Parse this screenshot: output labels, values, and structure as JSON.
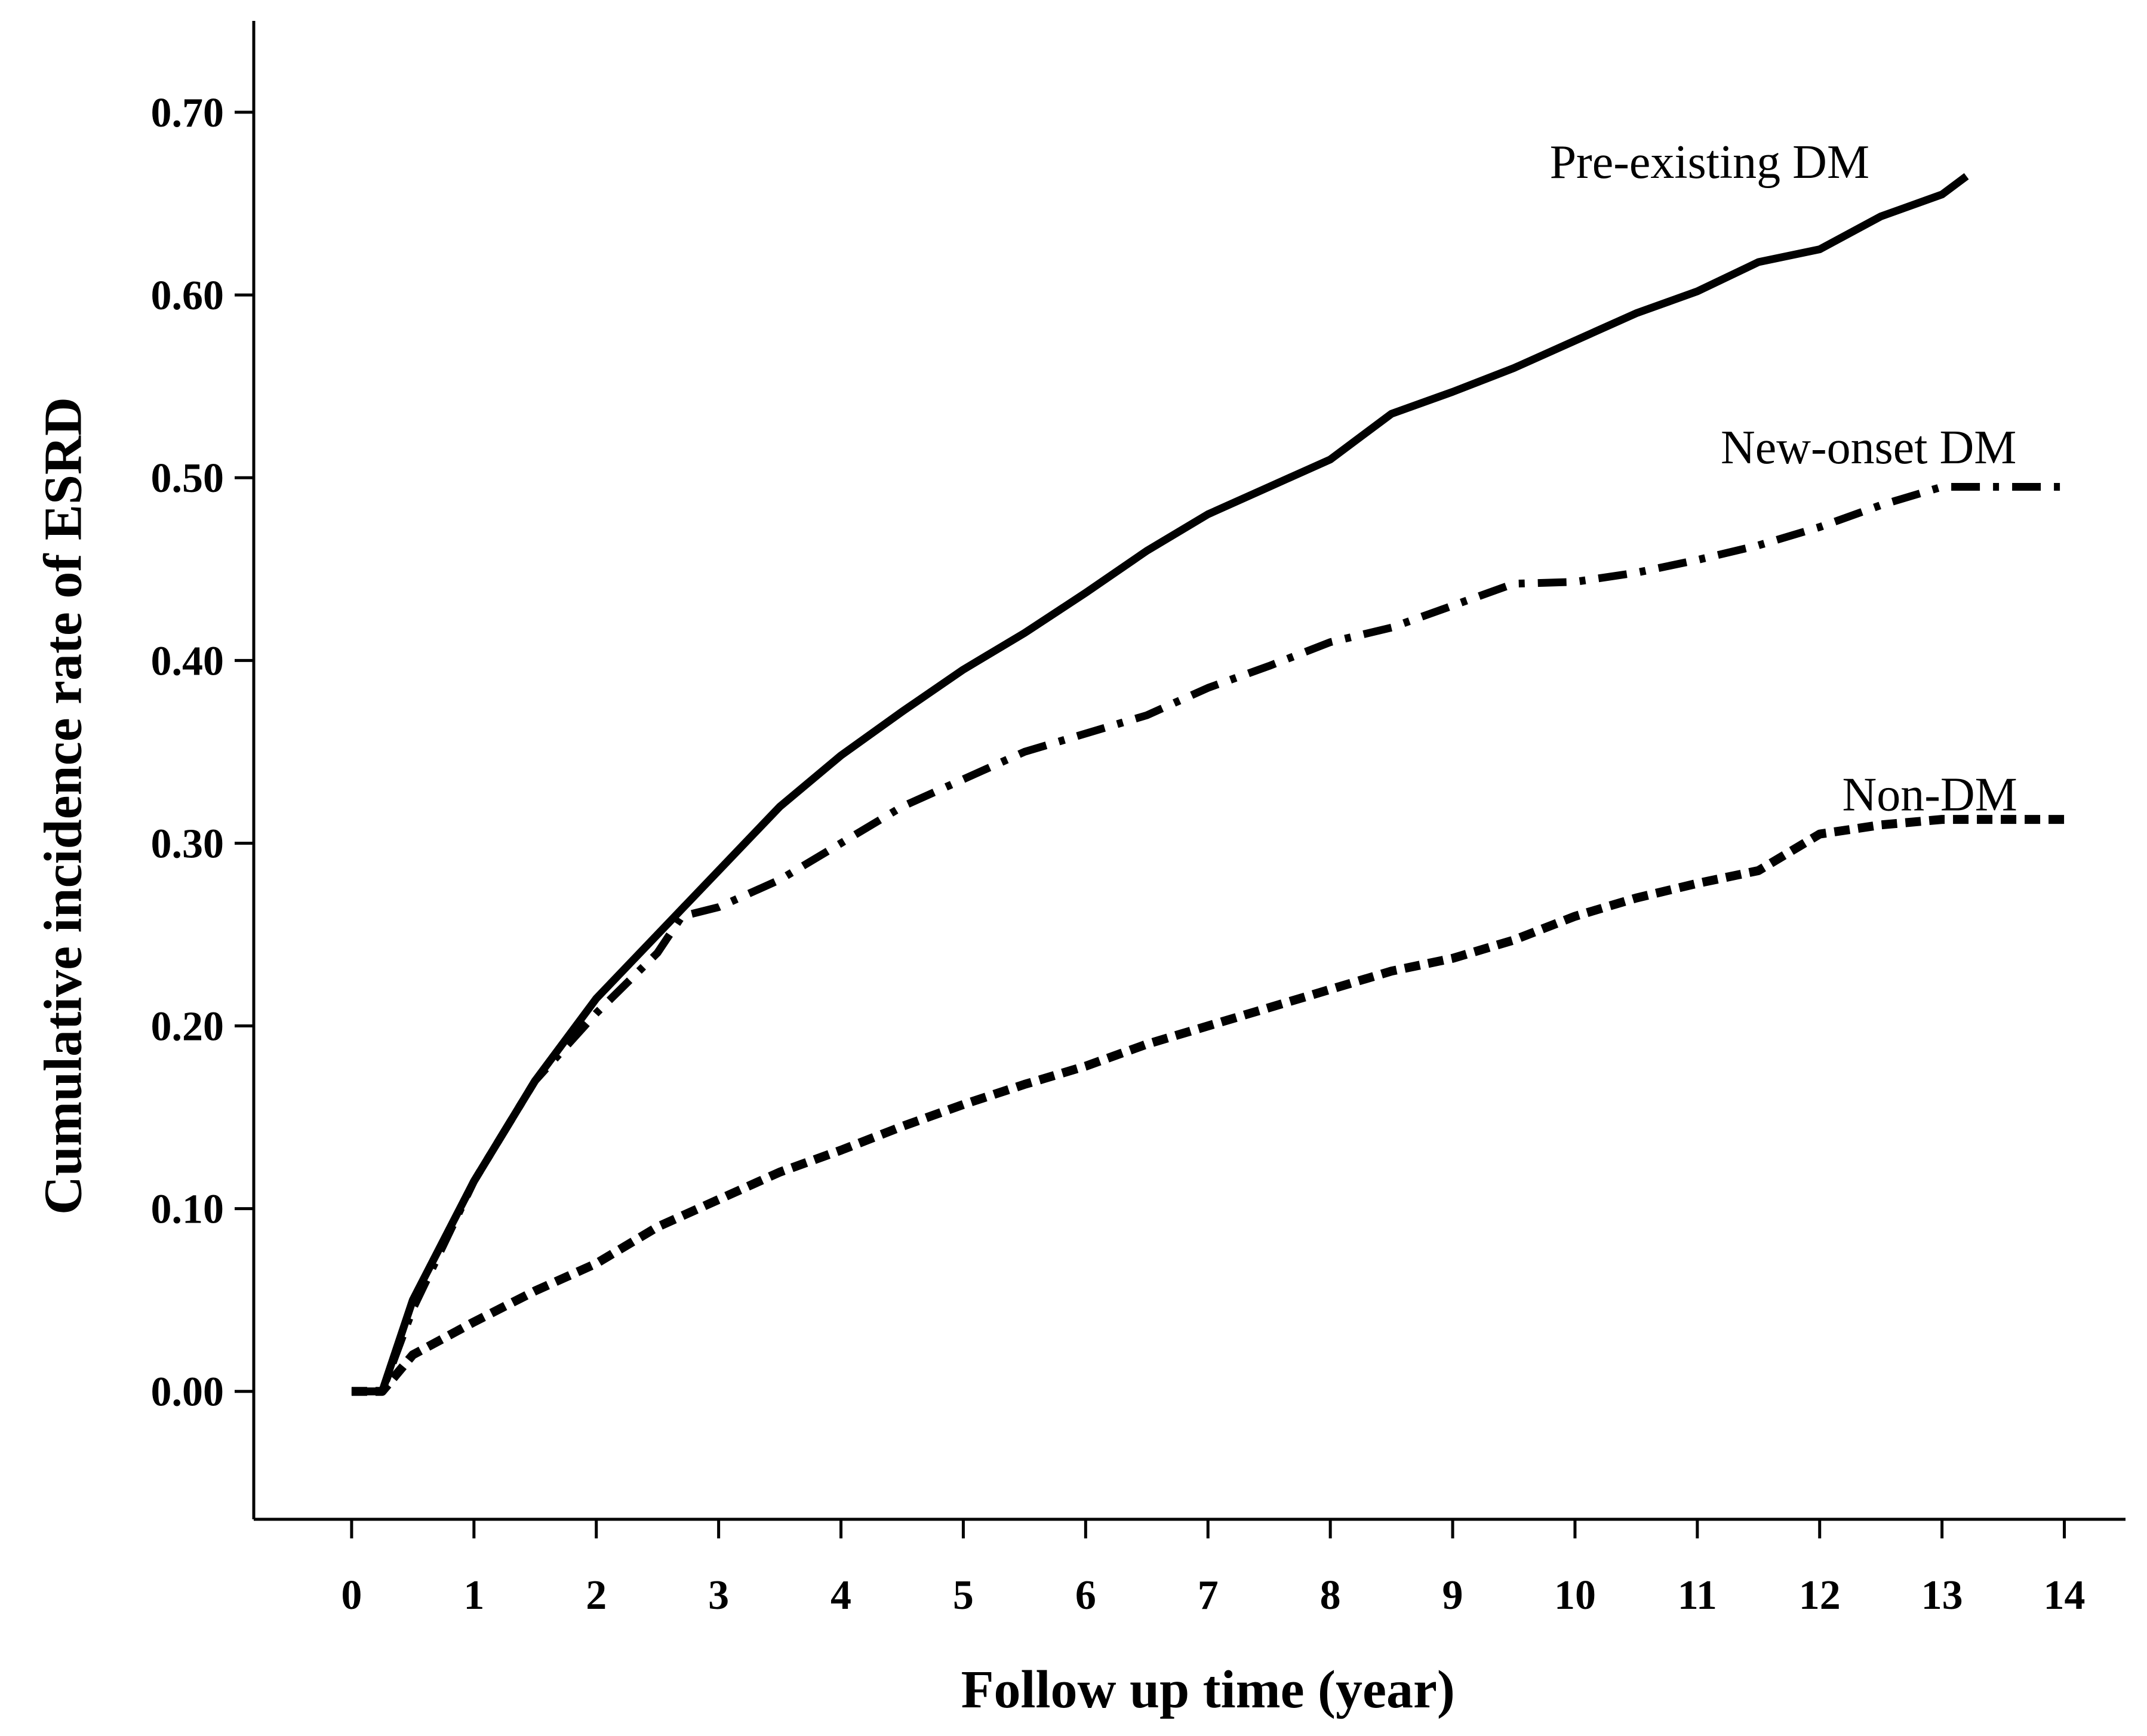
{
  "chart_data": {
    "type": "line",
    "title": "",
    "xlabel": "Follow up time (year)",
    "ylabel": "Cumulative incidence rate of ESRD",
    "xlim": [
      -0.8,
      14.5
    ],
    "ylim": [
      -0.07,
      0.75
    ],
    "xticks": [
      "0",
      "1",
      "2",
      "3",
      "4",
      "5",
      "6",
      "7",
      "8",
      "9",
      "10",
      "11",
      "12",
      "13",
      "14"
    ],
    "yticks": [
      "0.00",
      "0.10",
      "0.20",
      "0.30",
      "0.40",
      "0.50",
      "0.60",
      "0.70"
    ],
    "grid": false,
    "series": [
      {
        "name": "Pre-existing DM",
        "style": "solid",
        "x": [
          0,
          0.25,
          0.5,
          1,
          1.5,
          2,
          2.5,
          3,
          3.5,
          4,
          4.5,
          5,
          5.5,
          6,
          6.5,
          7,
          7.5,
          8,
          8.5,
          9,
          9.5,
          10,
          10.5,
          11,
          11.5,
          12,
          12.5,
          13,
          13.2
        ],
        "values": [
          0,
          0,
          0.05,
          0.115,
          0.17,
          0.215,
          0.25,
          0.285,
          0.32,
          0.348,
          0.372,
          0.395,
          0.415,
          0.437,
          0.46,
          0.48,
          0.495,
          0.51,
          0.535,
          0.547,
          0.56,
          0.575,
          0.59,
          0.602,
          0.618,
          0.625,
          0.643,
          0.655,
          0.665
        ]
      },
      {
        "name": "New-onset DM",
        "style": "dash-dot",
        "x": [
          0,
          0.25,
          0.5,
          1,
          1.5,
          2,
          2.5,
          2.7,
          3,
          3.5,
          4,
          4.5,
          5,
          5.5,
          6,
          6.5,
          7,
          7.5,
          8,
          8.5,
          9,
          9.5,
          10,
          10.5,
          11,
          11.5,
          12,
          12.5,
          13,
          14
        ],
        "values": [
          0,
          0,
          0.045,
          0.115,
          0.17,
          0.207,
          0.24,
          0.26,
          0.265,
          0.28,
          0.3,
          0.32,
          0.335,
          0.35,
          0.36,
          0.37,
          0.385,
          0.397,
          0.41,
          0.418,
          0.43,
          0.442,
          0.443,
          0.448,
          0.455,
          0.463,
          0.473,
          0.485,
          0.495,
          0.495
        ]
      },
      {
        "name": "Non-DM",
        "style": "dashed",
        "x": [
          0,
          0.25,
          0.5,
          1,
          1.5,
          2,
          2.5,
          3,
          3.5,
          4,
          4.5,
          5,
          5.5,
          6,
          6.5,
          7,
          7.5,
          8,
          8.5,
          9,
          9.5,
          10,
          10.5,
          11,
          11.5,
          12,
          12.5,
          13,
          14
        ],
        "values": [
          0,
          0,
          0.02,
          0.038,
          0.055,
          0.07,
          0.09,
          0.105,
          0.12,
          0.132,
          0.145,
          0.157,
          0.168,
          0.178,
          0.19,
          0.2,
          0.21,
          0.22,
          0.23,
          0.237,
          0.247,
          0.26,
          0.27,
          0.278,
          0.285,
          0.305,
          0.31,
          0.313,
          0.313
        ]
      }
    ],
    "annotations": [
      {
        "text": "Pre-existing DM",
        "series": "Pre-existing DM",
        "x": 11.1,
        "y": 0.664
      },
      {
        "text": "New-onset DM",
        "series": "New-onset DM",
        "x": 12.4,
        "y": 0.508
      },
      {
        "text": "Non-DM",
        "series": "Non-DM",
        "x": 12.9,
        "y": 0.318
      }
    ]
  }
}
